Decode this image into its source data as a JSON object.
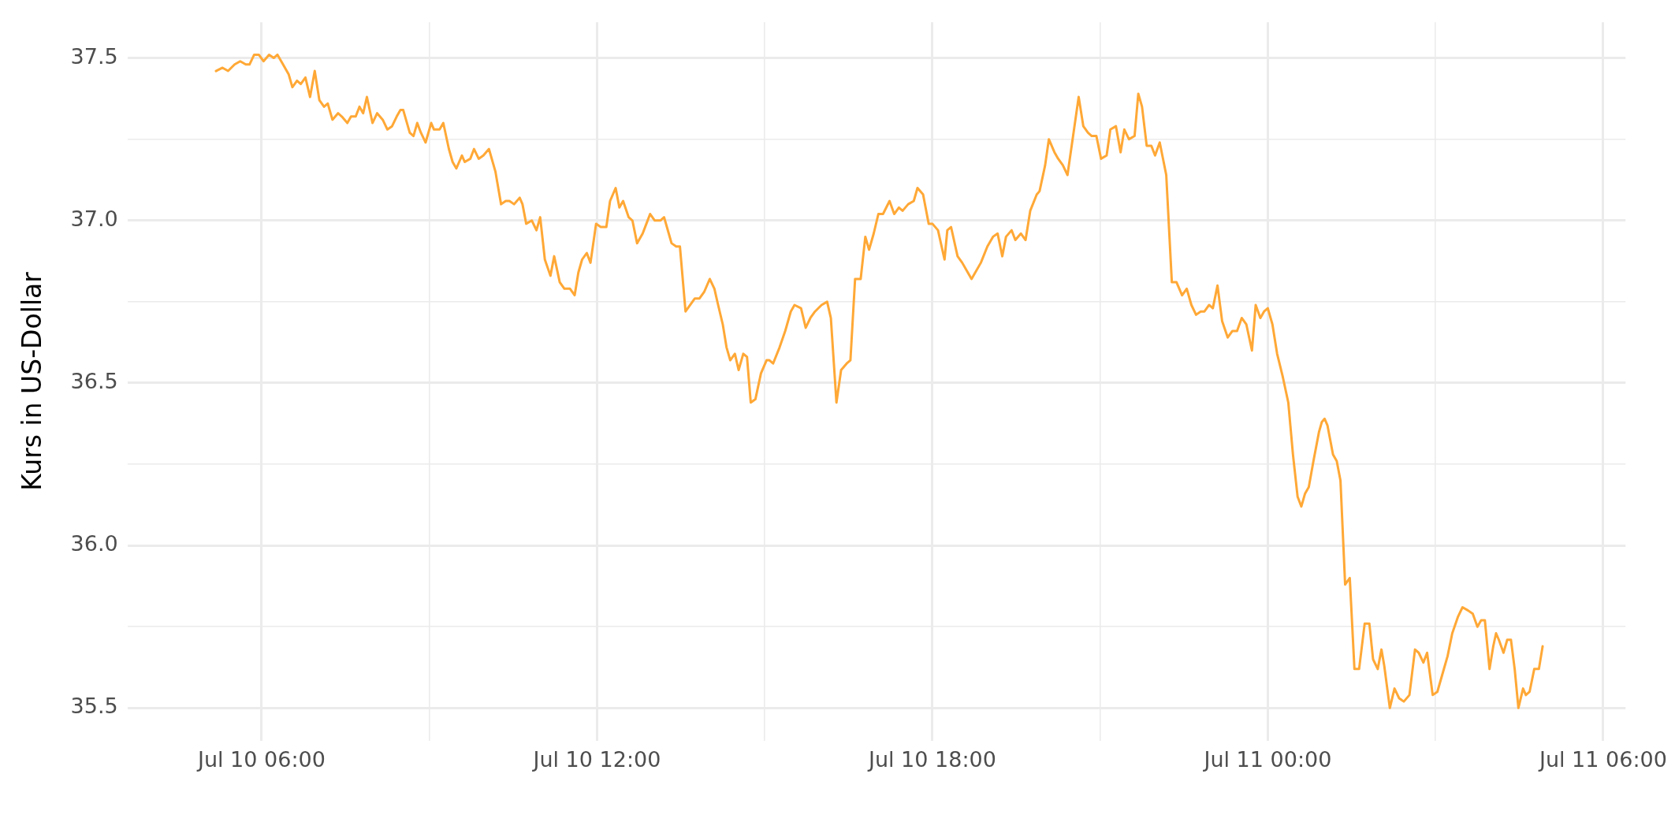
{
  "chart_data": {
    "type": "line",
    "ylabel": "Kurs in US-Dollar",
    "xlim": [
      "--07-10T03:36",
      "--07-11T06:24"
    ],
    "xticks": [
      {
        "value": "--07-10T06:00",
        "label": "Jul 10 06:00"
      },
      {
        "value": "--07-10T09:00",
        "label": null
      },
      {
        "value": "--07-10T12:00",
        "label": "Jul 10 12:00"
      },
      {
        "value": "--07-10T15:00",
        "label": null
      },
      {
        "value": "--07-10T18:00",
        "label": "Jul 10 18:00"
      },
      {
        "value": "--07-10T21:00",
        "label": null
      },
      {
        "value": "--07-11T00:00",
        "label": "Jul 11 00:00"
      },
      {
        "value": "--07-11T03:00",
        "label": null
      },
      {
        "value": "--07-11T06:00",
        "label": "Jul 11 06:00"
      }
    ],
    "ylim": [
      35.4,
      37.61
    ],
    "yticks": [
      35.5,
      {
        "value": 35.75,
        "label": null
      },
      {
        "value": 36,
        "label": "36.0"
      },
      {
        "value": 36.25,
        "label": null
      },
      36.5,
      {
        "value": 36.75,
        "label": null
      },
      {
        "value": 37,
        "label": "37.0"
      },
      {
        "value": 37.25,
        "label": null
      },
      37.5
    ],
    "grid": true,
    "legend": false,
    "series": [
      {
        "color": "#ffa836",
        "x": [
          "--07-10T05:11",
          "--07-10T05:18",
          "--07-10T05:24",
          "--07-10T05:31",
          "--07-10T05:37",
          "--07-10T05:43",
          "--07-10T05:47",
          "--07-10T05:52",
          "--07-10T05:57",
          "--07-10T06:02",
          "--07-10T06:08",
          "--07-10T06:13",
          "--07-10T06:17",
          "--07-10T06:23",
          "--07-10T06:29",
          "--07-10T06:33",
          "--07-10T06:38",
          "--07-10T06:42",
          "--07-10T06:47",
          "--07-10T06:52",
          "--07-10T06:57",
          "--07-10T07:02",
          "--07-10T07:07",
          "--07-10T07:11",
          "--07-10T07:16",
          "--07-10T07:22",
          "--07-10T07:26",
          "--07-10T07:32",
          "--07-10T07:36",
          "--07-10T07:41",
          "--07-10T07:45",
          "--07-10T07:49",
          "--07-10T07:53",
          "--07-10T07:59",
          "--07-10T08:04",
          "--07-10T08:10",
          "--07-10T08:15",
          "--07-10T08:20",
          "--07-10T08:25",
          "--07-10T08:29",
          "--07-10T08:32",
          "--07-10T08:39",
          "--07-10T08:43",
          "--07-10T08:47",
          "--07-10T08:51",
          "--07-10T08:56",
          "--07-10T09:02",
          "--07-10T09:05",
          "--07-10T09:11",
          "--07-10T09:15",
          "--07-10T09:21",
          "--07-10T09:25",
          "--07-10T09:29",
          "--07-10T09:35",
          "--07-10T09:38",
          "--07-10T09:44",
          "--07-10T09:48",
          "--07-10T09:53",
          "--07-10T09:58",
          "--07-10T10:04",
          "--07-10T10:11",
          "--07-10T10:17",
          "--07-10T10:22",
          "--07-10T10:26",
          "--07-10T10:31",
          "--07-10T10:37",
          "--07-10T10:40",
          "--07-10T10:44",
          "--07-10T10:50",
          "--07-10T10:55",
          "--07-10T10:59",
          "--07-10T11:04",
          "--07-10T11:10",
          "--07-10T11:14",
          "--07-10T11:20",
          "--07-10T11:25",
          "--07-10T11:31",
          "--07-10T11:36",
          "--07-10T11:40",
          "--07-10T11:44",
          "--07-10T11:49",
          "--07-10T11:53",
          "--07-10T11:59",
          "--07-10T12:04",
          "--07-10T12:10",
          "--07-10T12:14",
          "--07-10T12:20",
          "--07-10T12:24",
          "--07-10T12:28",
          "--07-10T12:34",
          "--07-10T12:38",
          "--07-10T12:43",
          "--07-10T12:49",
          "--07-10T12:53",
          "--07-10T12:57",
          "--07-10T13:02",
          "--07-10T13:08",
          "--07-10T13:12",
          "--07-10T13:17",
          "--07-10T13:20",
          "--07-10T13:25",
          "--07-10T13:29",
          "--07-10T13:35",
          "--07-10T13:40",
          "--07-10T13:45",
          "--07-10T13:50",
          "--07-10T13:55",
          "--07-10T14:01",
          "--07-10T14:06",
          "--07-10T14:10",
          "--07-10T14:15",
          "--07-10T14:19",
          "--07-10T14:23",
          "--07-10T14:28",
          "--07-10T14:32",
          "--07-10T14:37",
          "--07-10T14:41",
          "--07-10T14:45",
          "--07-10T14:50",
          "--07-10T14:56",
          "--07-10T14:59",
          "--07-10T15:02",
          "--07-10T15:05",
          "--07-10T15:09",
          "--07-10T15:16",
          "--07-10T15:22",
          "--07-10T15:28",
          "--07-10T15:32",
          "--07-10T15:39",
          "--07-10T15:44",
          "--07-10T15:49",
          "--07-10T15:54",
          "--07-10T16:01",
          "--07-10T16:07",
          "--07-10T16:11",
          "--07-10T16:17",
          "--07-10T16:22",
          "--07-10T16:28",
          "--07-10T16:32",
          "--07-10T16:37",
          "--07-10T16:43",
          "--07-10T16:48",
          "--07-10T16:52",
          "--07-10T16:57",
          "--07-10T17:02",
          "--07-10T17:07",
          "--07-10T17:14",
          "--07-10T17:19",
          "--07-10T17:24",
          "--07-10T17:28",
          "--07-10T17:34",
          "--07-10T17:40",
          "--07-10T17:44",
          "--07-10T17:50",
          "--07-10T17:56",
          "--07-10T18:00",
          "--07-10T18:06",
          "--07-10T18:13",
          "--07-10T18:16",
          "--07-10T18:20",
          "--07-10T18:27",
          "--07-10T18:32",
          "--07-10T18:38",
          "--07-10T18:42",
          "--07-10T18:52",
          "--07-10T18:59",
          "--07-10T19:05",
          "--07-10T19:10",
          "--07-10T19:15",
          "--07-10T19:19",
          "--07-10T19:25",
          "--07-10T19:29",
          "--07-10T19:35",
          "--07-10T19:40",
          "--07-10T19:45",
          "--07-10T19:52",
          "--07-10T19:55",
          "--07-10T20:01",
          "--07-10T20:05",
          "--07-10T20:11",
          "--07-10T20:15",
          "--07-10T20:20",
          "--07-10T20:25",
          "--07-10T20:32",
          "--07-10T20:37",
          "--07-10T20:42",
          "--07-10T20:47",
          "--07-10T20:51",
          "--07-10T20:56",
          "--07-10T21:01",
          "--07-10T21:07",
          "--07-10T21:11",
          "--07-10T21:17",
          "--07-10T21:22",
          "--07-10T21:26",
          "--07-10T21:31",
          "--07-10T21:37",
          "--07-10T21:41",
          "--07-10T21:45",
          "--07-10T21:50",
          "--07-10T21:55",
          "--07-10T21:59",
          "--07-10T22:04",
          "--07-10T22:11",
          "--07-10T22:17",
          "--07-10T22:22",
          "--07-10T22:28",
          "--07-10T22:33",
          "--07-10T22:38",
          "--07-10T22:43",
          "--07-10T22:48",
          "--07-10T22:52",
          "--07-10T22:57",
          "--07-10T23:01",
          "--07-10T23:06",
          "--07-10T23:11",
          "--07-10T23:17",
          "--07-10T23:22",
          "--07-10T23:27",
          "--07-10T23:32",
          "--07-10T23:37",
          "--07-10T23:43",
          "--07-10T23:47",
          "--07-10T23:52",
          "--07-10T23:56",
          "--07-11T00:00",
          "--07-11T00:05",
          "--07-11T00:10",
          "--07-11T00:16",
          "--07-11T00:22",
          "--07-11T00:27",
          "--07-11T00:32",
          "--07-11T00:36",
          "--07-11T00:40",
          "--07-11T00:44",
          "--07-11T00:49",
          "--07-11T00:55",
          "--07-11T00:58",
          "--07-11T01:01",
          "--07-11T01:04",
          "--07-11T01:10",
          "--07-11T01:14",
          "--07-11T01:18",
          "--07-11T01:23",
          "--07-11T01:28",
          "--07-11T01:33",
          "--07-11T01:38",
          "--07-11T01:44",
          "--07-11T01:49",
          "--07-11T01:53",
          "--07-11T01:58",
          "--07-11T02:02",
          "--07-11T02:05",
          "--07-11T02:11",
          "--07-11T02:16",
          "--07-11T02:21",
          "--07-11T02:26",
          "--07-11T02:32",
          "--07-11T02:38",
          "--07-11T02:42",
          "--07-11T02:47",
          "--07-11T02:51",
          "--07-11T02:57",
          "--07-11T03:02",
          "--07-11T03:08",
          "--07-11T03:13",
          "--07-11T03:18",
          "--07-11T03:24",
          "--07-11T03:29",
          "--07-11T03:35",
          "--07-11T03:40",
          "--07-11T03:45",
          "--07-11T03:49",
          "--07-11T03:53",
          "--07-11T03:58",
          "--07-11T04:02",
          "--07-11T04:05",
          "--07-11T04:08",
          "--07-11T04:13",
          "--07-11T04:17",
          "--07-11T04:21",
          "--07-11T04:25",
          "--07-11T04:29",
          "--07-11T04:34",
          "--07-11T04:37",
          "--07-11T04:41",
          "--07-11T04:46",
          "--07-11T04:51",
          "--07-11T04:55"
        ],
        "values": [
          37.46,
          37.47,
          37.46,
          37.48,
          37.49,
          37.48,
          37.48,
          37.51,
          37.51,
          37.49,
          37.51,
          37.5,
          37.51,
          37.48,
          37.45,
          37.41,
          37.43,
          37.42,
          37.44,
          37.38,
          37.46,
          37.37,
          37.35,
          37.36,
          37.31,
          37.33,
          37.32,
          37.3,
          37.32,
          37.32,
          37.35,
          37.33,
          37.38,
          37.3,
          37.33,
          37.31,
          37.28,
          37.29,
          37.32,
          37.34,
          37.34,
          37.27,
          37.26,
          37.3,
          37.27,
          37.24,
          37.3,
          37.28,
          37.28,
          37.3,
          37.22,
          37.18,
          37.16,
          37.2,
          37.18,
          37.19,
          37.22,
          37.19,
          37.2,
          37.22,
          37.15,
          37.05,
          37.06,
          37.06,
          37.05,
          37.07,
          37.05,
          36.99,
          37.0,
          36.97,
          37.01,
          36.88,
          36.83,
          36.89,
          36.81,
          36.79,
          36.79,
          36.77,
          36.84,
          36.88,
          36.9,
          36.87,
          36.99,
          36.98,
          36.98,
          37.06,
          37.1,
          37.04,
          37.06,
          37.01,
          37.0,
          36.93,
          36.96,
          36.99,
          37.02,
          37.0,
          37.0,
          37.01,
          36.96,
          36.93,
          36.92,
          36.92,
          36.72,
          36.74,
          36.76,
          36.76,
          36.78,
          36.82,
          36.79,
          36.74,
          36.68,
          36.61,
          36.57,
          36.59,
          36.54,
          36.59,
          36.58,
          36.44,
          36.45,
          36.53,
          36.55,
          36.57,
          36.57,
          36.56,
          36.61,
          36.66,
          36.72,
          36.74,
          36.73,
          36.67,
          36.7,
          36.72,
          36.74,
          36.75,
          36.7,
          36.44,
          36.54,
          36.56,
          36.57,
          36.82,
          36.82,
          36.95,
          36.91,
          36.96,
          37.02,
          37.02,
          37.06,
          37.02,
          37.04,
          37.03,
          37.05,
          37.06,
          37.1,
          37.08,
          36.99,
          36.99,
          36.97,
          36.88,
          36.97,
          36.98,
          36.89,
          36.87,
          36.84,
          36.82,
          36.87,
          36.92,
          36.95,
          36.96,
          36.89,
          36.95,
          36.97,
          36.94,
          36.96,
          36.94,
          37.03,
          37.08,
          37.09,
          37.17,
          37.25,
          37.21,
          37.19,
          37.17,
          37.14,
          37.28,
          37.38,
          37.29,
          37.27,
          37.26,
          37.26,
          37.19,
          37.2,
          37.28,
          37.29,
          37.21,
          37.28,
          37.25,
          37.26,
          37.39,
          37.35,
          37.23,
          37.23,
          37.2,
          37.24,
          37.14,
          36.81,
          36.81,
          36.77,
          36.79,
          36.74,
          36.71,
          36.72,
          36.72,
          36.74,
          36.73,
          36.8,
          36.69,
          36.64,
          36.66,
          36.66,
          36.7,
          36.68,
          36.6,
          36.74,
          36.7,
          36.72,
          36.73,
          36.68,
          36.59,
          36.52,
          36.44,
          36.28,
          36.15,
          36.12,
          36.16,
          36.18,
          36.26,
          36.35,
          36.38,
          36.39,
          36.37,
          36.28,
          36.26,
          36.2,
          35.88,
          35.9,
          35.62,
          35.62,
          35.76,
          35.76,
          35.65,
          35.62,
          35.68,
          35.63,
          35.5,
          35.56,
          35.53,
          35.52,
          35.54,
          35.68,
          35.67,
          35.64,
          35.67,
          35.54,
          35.55,
          35.61,
          35.66,
          35.73,
          35.78,
          35.81,
          35.8,
          35.79,
          35.75,
          35.77,
          35.77,
          35.62,
          35.69,
          35.73,
          35.71,
          35.67,
          35.71,
          35.71,
          35.62,
          35.5,
          35.56,
          35.54,
          35.55,
          35.62,
          35.62,
          35.69
        ]
      }
    ]
  }
}
